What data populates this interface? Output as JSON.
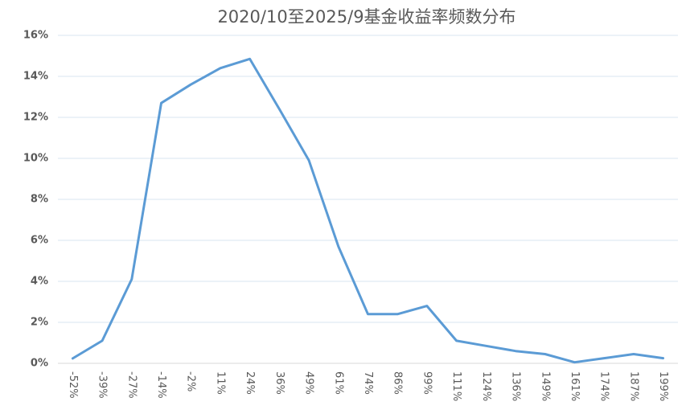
{
  "chart_data": {
    "type": "line",
    "title": "2020/10至2025/9基金收益率频数分布",
    "categories": [
      "-52%",
      "-39%",
      "-27%",
      "-14%",
      "-2%",
      "11%",
      "24%",
      "36%",
      "49%",
      "61%",
      "74%",
      "86%",
      "99%",
      "111%",
      "124%",
      "136%",
      "149%",
      "161%",
      "174%",
      "187%",
      "199%"
    ],
    "values": [
      0.24,
      1.1,
      4.1,
      12.7,
      13.6,
      14.4,
      14.85,
      12.4,
      9.9,
      5.7,
      2.4,
      2.4,
      2.8,
      1.1,
      0.85,
      0.6,
      0.45,
      0.05,
      0.25,
      0.45,
      0.25
    ],
    "color": "#5b9bd5",
    "ylim": [
      0,
      16
    ],
    "yticks": [
      {
        "value": 0,
        "label": "0%"
      },
      {
        "value": 2,
        "label": "2%"
      },
      {
        "value": 4,
        "label": "4%"
      },
      {
        "value": 6,
        "label": "6%"
      },
      {
        "value": 8,
        "label": "8%"
      },
      {
        "value": 10,
        "label": "10%"
      },
      {
        "value": 12,
        "label": "12%"
      },
      {
        "value": 14,
        "label": "14%"
      },
      {
        "value": 16,
        "label": "16%"
      }
    ],
    "grid": true
  }
}
